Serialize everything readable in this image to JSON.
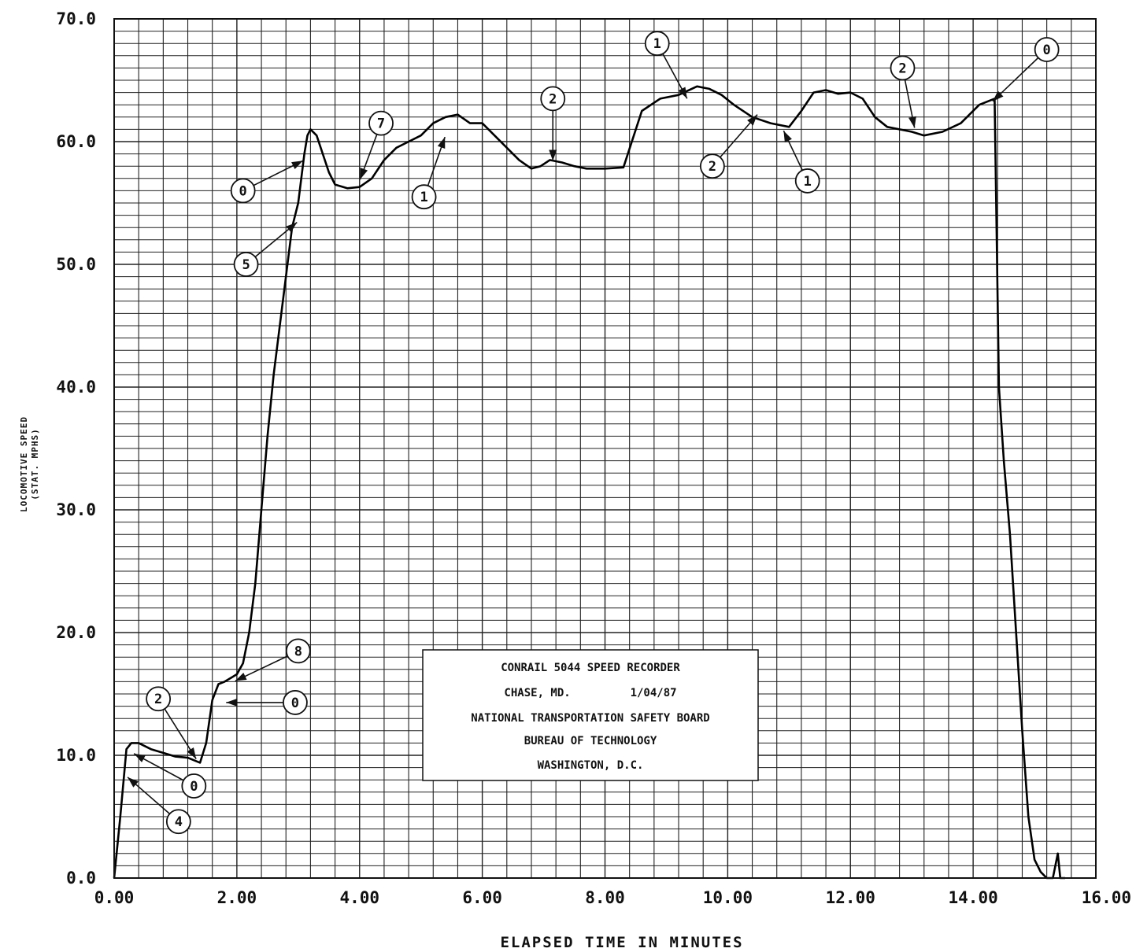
{
  "chart_data": {
    "type": "line",
    "xlabel": "ELAPSED TIME IN MINUTES",
    "ylabel": [
      "LOCOMOTIVE SPEED",
      "(STAT. MPHS)"
    ],
    "xlim": [
      0,
      16
    ],
    "ylim": [
      0,
      70
    ],
    "x_ticks": [
      "0.00",
      "2.00",
      "4.00",
      "6.00",
      "8.00",
      "10.00",
      "12.00",
      "14.00",
      "16.00"
    ],
    "y_ticks": [
      "0.0",
      "10.0",
      "20.0",
      "30.0",
      "40.0",
      "50.0",
      "60.0",
      "70.0"
    ],
    "grid": true,
    "series": [
      {
        "x": [
          0.0,
          0.1,
          0.2,
          0.28,
          0.4,
          0.6,
          0.8,
          1.0,
          1.2,
          1.4,
          1.5,
          1.6,
          1.7,
          1.8,
          1.9,
          2.0,
          2.1,
          2.2,
          2.3,
          2.4,
          2.5,
          2.6,
          2.7,
          2.8,
          2.9,
          3.0,
          3.05,
          3.1,
          3.15,
          3.2,
          3.3,
          3.4,
          3.5,
          3.6,
          3.8,
          4.0,
          4.2,
          4.4,
          4.6,
          4.8,
          5.0,
          5.2,
          5.4,
          5.6,
          5.8,
          6.0,
          6.2,
          6.4,
          6.6,
          6.8,
          6.95,
          7.1,
          7.3,
          7.5,
          7.7,
          8.0,
          8.3,
          8.6,
          8.9,
          9.2,
          9.5,
          9.7,
          9.9,
          10.1,
          10.4,
          10.7,
          11.0,
          11.2,
          11.4,
          11.6,
          11.8,
          12.0,
          12.2,
          12.4,
          12.6,
          12.8,
          13.0,
          13.2,
          13.5,
          13.8,
          14.1,
          14.35,
          14.42,
          14.5,
          14.6,
          14.7,
          14.8,
          14.9,
          15.0,
          15.1,
          15.2,
          15.3,
          15.38,
          15.42,
          15.45,
          15.5
        ],
        "values": [
          0.0,
          5.0,
          10.5,
          11.0,
          11.0,
          10.5,
          10.2,
          9.9,
          9.8,
          9.4,
          11.0,
          14.5,
          15.8,
          16.0,
          16.3,
          16.6,
          17.5,
          20.0,
          24.0,
          30.0,
          36.0,
          41.0,
          45.0,
          49.0,
          53.0,
          55.0,
          57.0,
          59.0,
          60.5,
          61.0,
          60.5,
          59.0,
          57.5,
          56.5,
          56.2,
          56.3,
          57.0,
          58.5,
          59.5,
          60.0,
          60.5,
          61.5,
          62.0,
          62.2,
          61.5,
          61.5,
          60.5,
          59.5,
          58.5,
          57.8,
          58.0,
          58.5,
          58.3,
          58.0,
          57.8,
          57.8,
          57.9,
          62.5,
          63.5,
          63.8,
          64.5,
          64.3,
          63.8,
          63.0,
          62.0,
          61.5,
          61.2,
          62.5,
          64.0,
          64.2,
          63.9,
          64.0,
          63.5,
          62.0,
          61.2,
          61.0,
          60.8,
          60.5,
          60.8,
          61.5,
          63.0,
          63.5,
          40.0,
          34.0,
          28.0,
          20.0,
          12.0,
          5.0,
          1.5,
          0.5,
          0.0,
          0.0,
          2.0,
          0.0,
          0.0,
          0.0
        ]
      }
    ],
    "annotations": [
      {
        "label": "0",
        "x": 1.3,
        "y": 7.5,
        "target_x": 0.3,
        "target_y": 10.2
      },
      {
        "label": "4",
        "x": 1.05,
        "y": 4.6,
        "target_x": 0.2,
        "target_y": 8.3
      },
      {
        "label": "2",
        "x": 0.72,
        "y": 14.6,
        "target_x": 1.35,
        "target_y": 9.6
      },
      {
        "label": "0",
        "x": 2.95,
        "y": 14.3,
        "target_x": 1.8,
        "target_y": 14.3
      },
      {
        "label": "8",
        "x": 3.0,
        "y": 18.5,
        "target_x": 1.95,
        "target_y": 16.0
      },
      {
        "label": "5",
        "x": 2.15,
        "y": 50.0,
        "target_x": 3.0,
        "target_y": 53.5
      },
      {
        "label": "0",
        "x": 2.1,
        "y": 56.0,
        "target_x": 3.1,
        "target_y": 58.5
      },
      {
        "label": "7",
        "x": 4.35,
        "y": 61.5,
        "target_x": 4.0,
        "target_y": 56.8
      },
      {
        "label": "1",
        "x": 5.05,
        "y": 55.5,
        "target_x": 5.4,
        "target_y": 60.5
      },
      {
        "label": "2",
        "x": 7.15,
        "y": 63.5,
        "target_x": 7.15,
        "target_y": 58.3
      },
      {
        "label": "1",
        "x": 8.85,
        "y": 68.0,
        "target_x": 9.35,
        "target_y": 63.4
      },
      {
        "label": "2",
        "x": 9.75,
        "y": 58.0,
        "target_x": 10.5,
        "target_y": 62.3
      },
      {
        "label": "1",
        "x": 11.3,
        "y": 56.8,
        "target_x": 10.9,
        "target_y": 61.0
      },
      {
        "label": "2",
        "x": 12.85,
        "y": 66.0,
        "target_x": 13.05,
        "target_y": 61.0
      },
      {
        "label": "0",
        "x": 15.2,
        "y": 67.5,
        "target_x": 14.3,
        "target_y": 63.2
      }
    ],
    "info_box": [
      "CONRAIL 5044 SPEED RECORDER",
      "CHASE, MD.         1/04/87",
      "NATIONAL TRANSPORTATION  SAFETY BOARD",
      "BUREAU OF  TECHNOLOGY",
      "WASHINGTON, D.C."
    ]
  }
}
